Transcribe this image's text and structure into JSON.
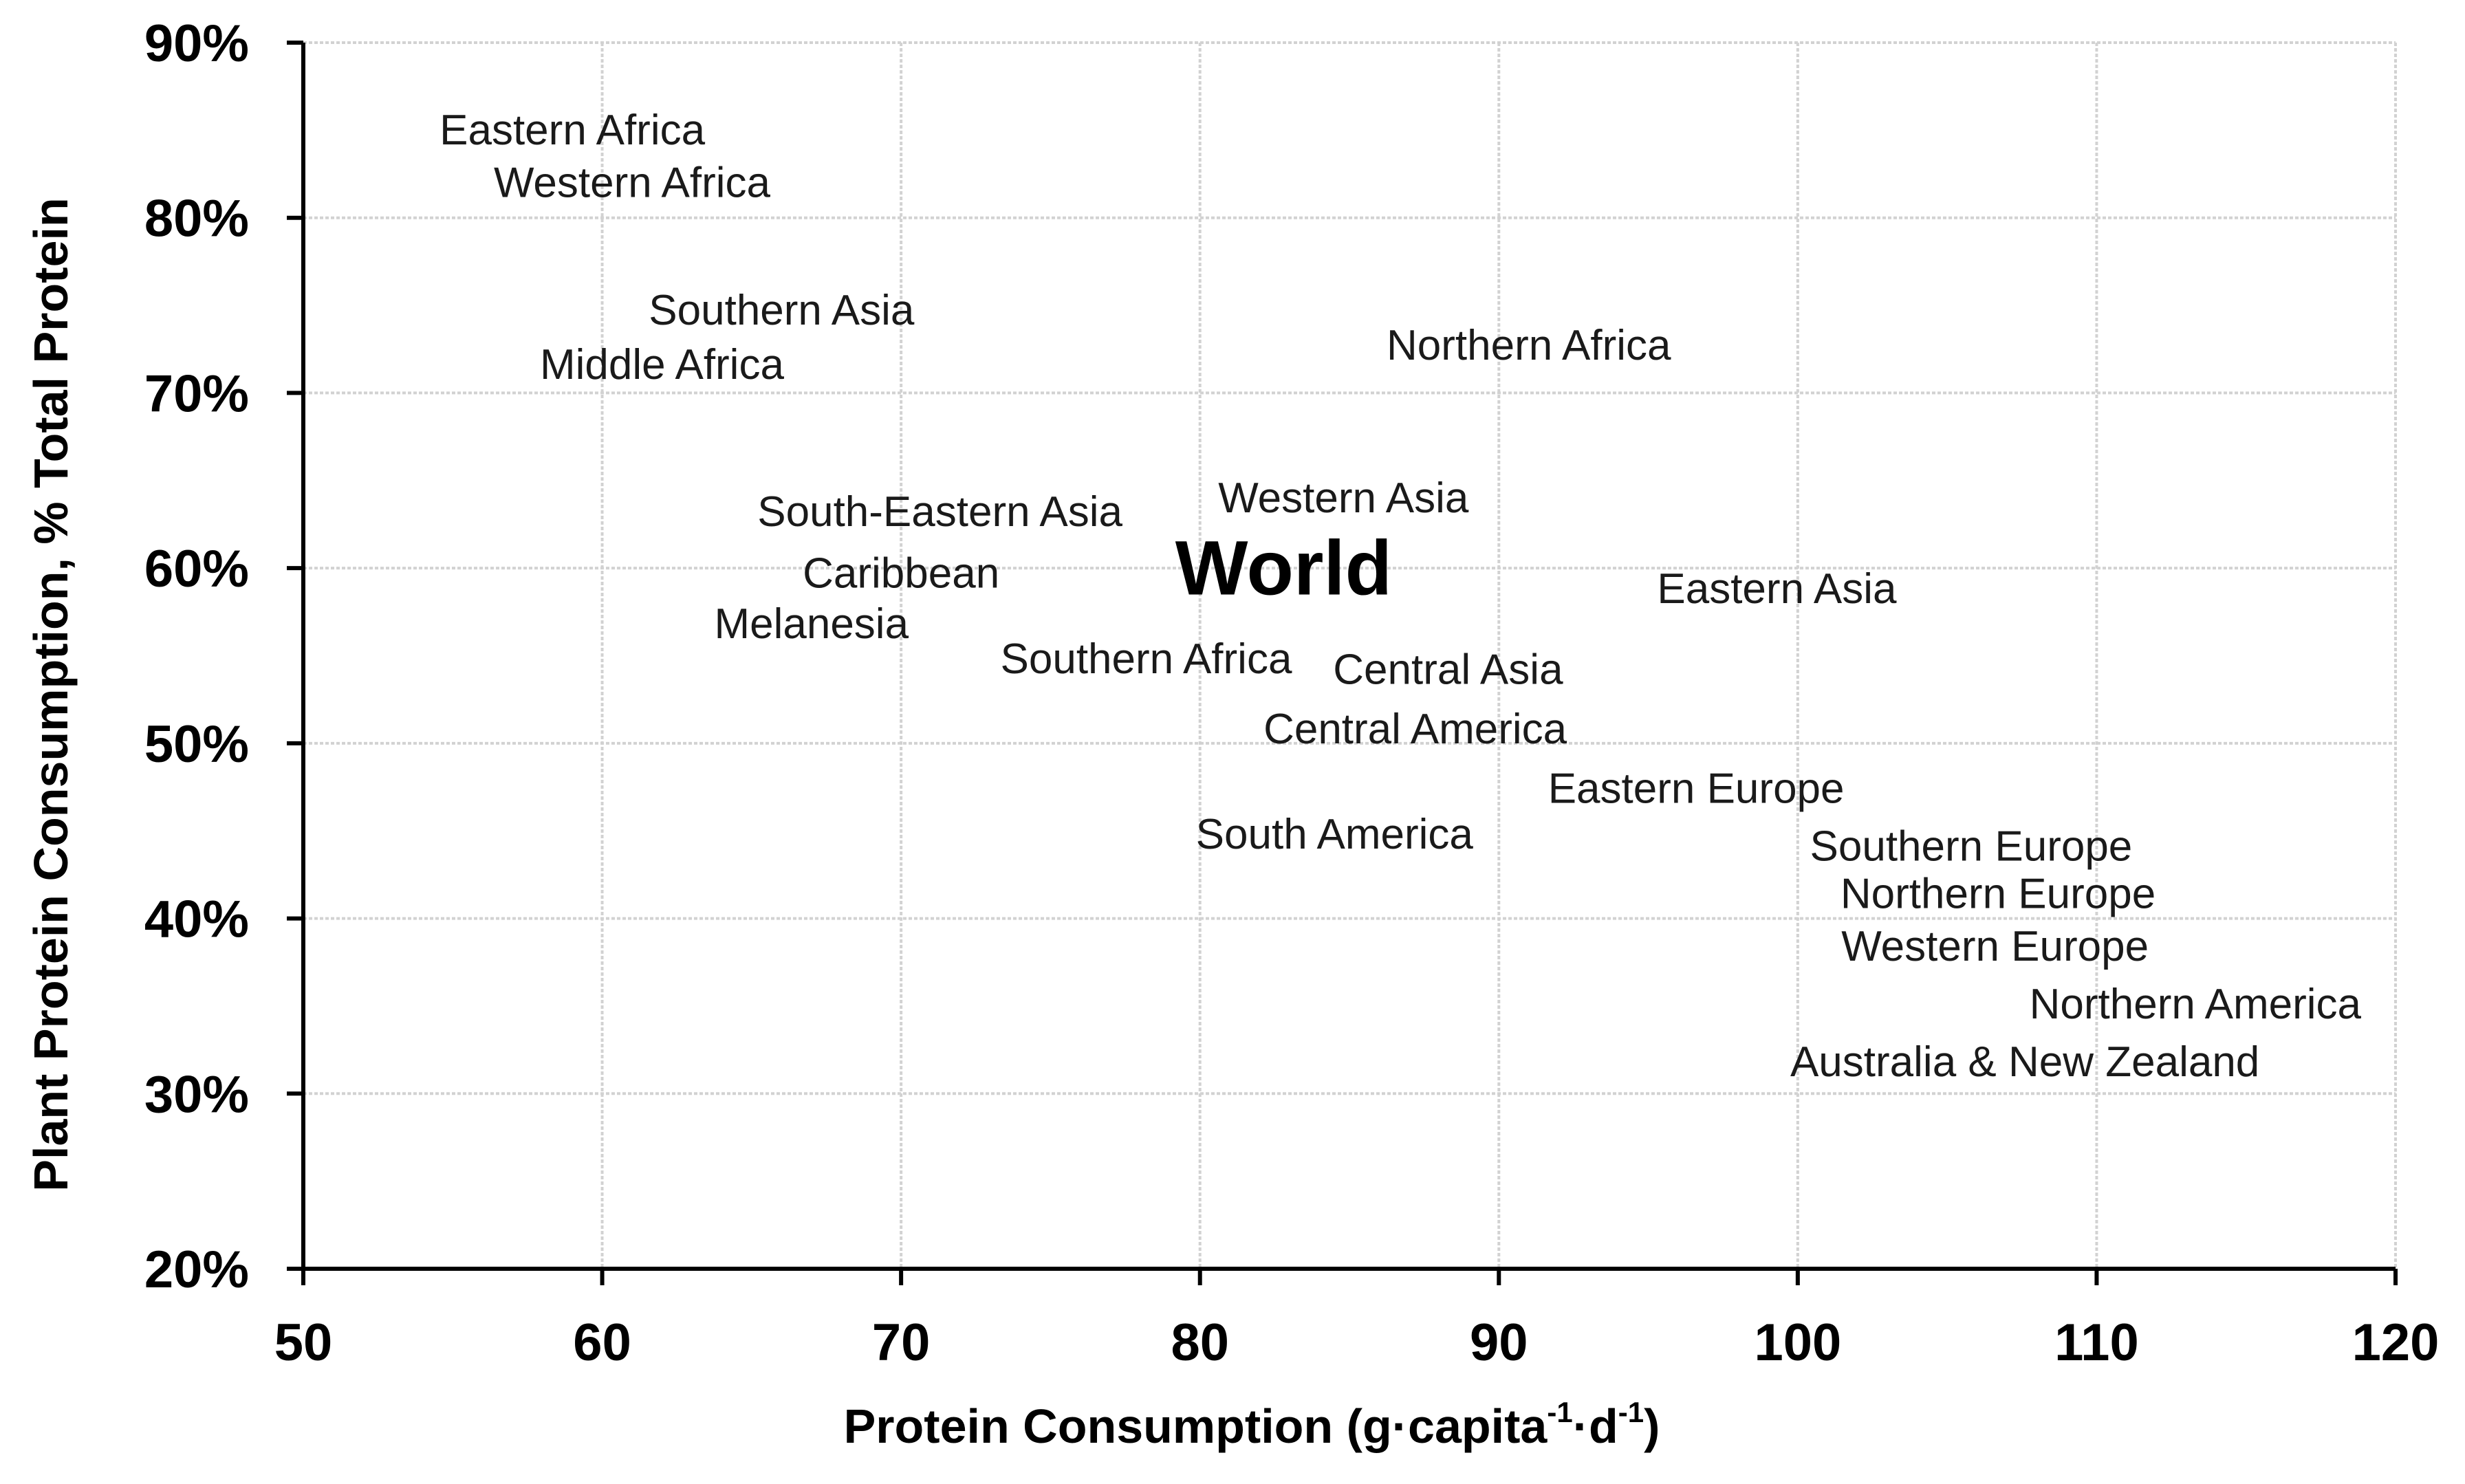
{
  "chart_data": {
    "type": "scatter",
    "title": "",
    "xlabel": "Protein Consumption (g·capita",
    "xlabel_sup1": "-1",
    "xlabel_mid": "·d",
    "xlabel_sup2": "-1",
    "xlabel_end": ")",
    "ylabel": "Plant Protein Consumption, % Total Protein",
    "xlim": [
      50,
      120
    ],
    "ylim": [
      20,
      90
    ],
    "x_ticks": [
      50,
      60,
      70,
      80,
      90,
      100,
      110,
      120
    ],
    "y_ticks": [
      20,
      30,
      40,
      50,
      60,
      70,
      80,
      90
    ],
    "x_tick_labels": [
      "50",
      "60",
      "70",
      "80",
      "90",
      "100",
      "110",
      "120"
    ],
    "y_tick_labels": [
      "20%",
      "30%",
      "40%",
      "50%",
      "60%",
      "70%",
      "80%",
      "90%"
    ],
    "grid": true,
    "marker": "text-label",
    "points": [
      {
        "label": "Eastern Africa",
        "x": 59,
        "y": 85
      },
      {
        "label": "Western Africa",
        "x": 61,
        "y": 82
      },
      {
        "label": "Southern Asia",
        "x": 66,
        "y": 74.7
      },
      {
        "label": "Middle Africa",
        "x": 62,
        "y": 71.6
      },
      {
        "label": "Northern Africa",
        "x": 91,
        "y": 72.7
      },
      {
        "label": "South-Eastern Asia",
        "x": 71.3,
        "y": 63.2
      },
      {
        "label": "Western Asia",
        "x": 84.8,
        "y": 64
      },
      {
        "label": "Caribbean",
        "x": 70,
        "y": 59.7
      },
      {
        "label": "World",
        "x": 82.8,
        "y": 60,
        "emphasis": true
      },
      {
        "label": "Melanesia",
        "x": 67,
        "y": 56.8
      },
      {
        "label": "Eastern Asia",
        "x": 99.3,
        "y": 58.8
      },
      {
        "label": "Southern Africa",
        "x": 78.2,
        "y": 54.8
      },
      {
        "label": "Central Asia",
        "x": 88.3,
        "y": 54.2
      },
      {
        "label": "Central America",
        "x": 87.2,
        "y": 50.8
      },
      {
        "label": "Eastern Europe",
        "x": 96.6,
        "y": 47.4
      },
      {
        "label": "South America",
        "x": 84.5,
        "y": 44.8
      },
      {
        "label": "Southern Europe",
        "x": 105.8,
        "y": 44.1
      },
      {
        "label": "Northern Europe",
        "x": 106.7,
        "y": 41.4
      },
      {
        "label": "Western Europe",
        "x": 106.6,
        "y": 38.4
      },
      {
        "label": "Northern America",
        "x": 113.3,
        "y": 35.1
      },
      {
        "label": "Australia & New Zealand",
        "x": 107.6,
        "y": 31.8
      }
    ]
  }
}
